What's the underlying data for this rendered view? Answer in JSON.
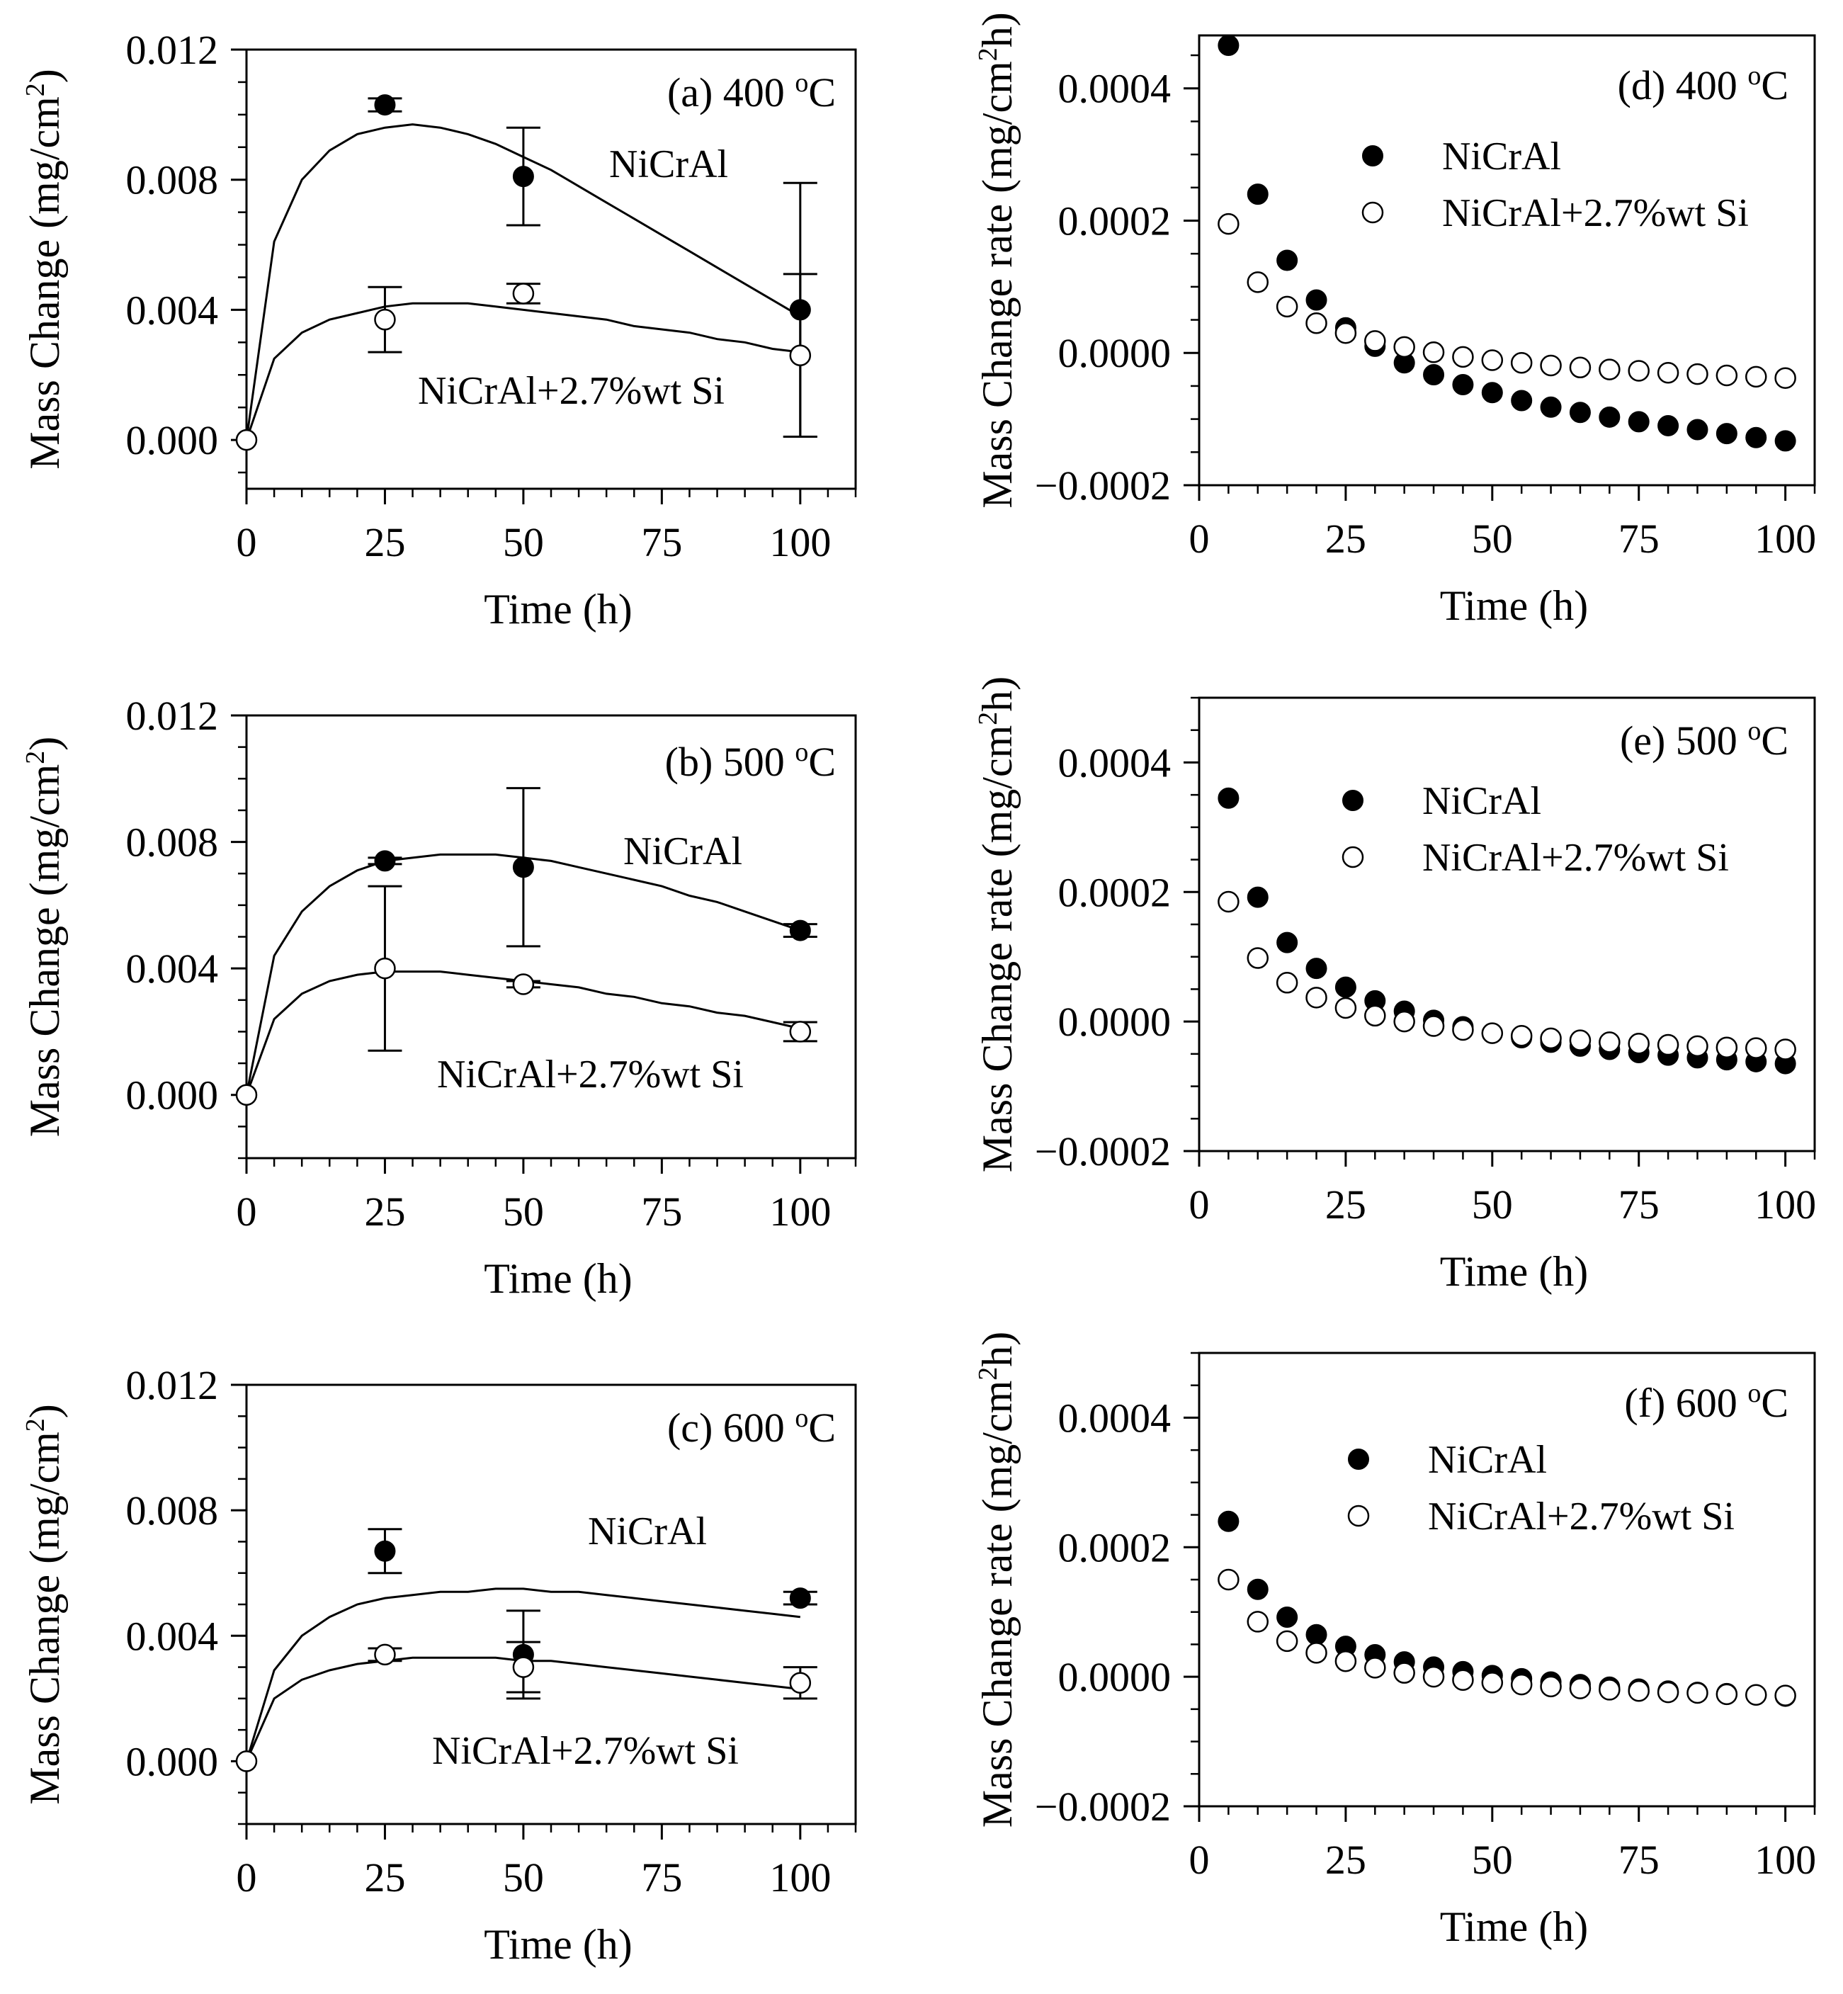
{
  "figure": {
    "colors": {
      "ink": "#000000",
      "background": "#ffffff",
      "open_fill": "#ffffff"
    },
    "series_names": [
      "NiCrAl",
      "NiCrAl+2.7%wt Si"
    ]
  },
  "chart_data": [
    {
      "id": "a",
      "type": "scatter",
      "title": "(a) 400 °C",
      "title_main": "(a) 400 ",
      "title_sup": "o",
      "title_unit": "C",
      "xlabel": "Time (h)",
      "ylabel": "Mass Change (mg/cm²)",
      "ylabel_main": "Mass Change (mg/cm",
      "ylabel_sup": "2",
      "ylabel_end": ")",
      "xlim": [
        0,
        110
      ],
      "ylim": [
        -0.0015,
        0.012
      ],
      "xticks": [
        0,
        25,
        50,
        75,
        100
      ],
      "xtick_labels": [
        "0",
        "25",
        "50",
        "75",
        "100"
      ],
      "yticks": [
        0,
        0.004,
        0.008,
        0.012
      ],
      "ytick_labels": [
        "0.000",
        "0.004",
        "0.008",
        "0.012"
      ],
      "series": [
        {
          "name": "NiCrAl",
          "marker": "filled",
          "x": [
            0,
            25,
            50,
            100
          ],
          "y": [
            0,
            0.0103,
            0.0081,
            0.004
          ],
          "err": [
            0,
            0.0002,
            0.0015,
            0.0039
          ],
          "fit": {
            "x": [
              0,
              5,
              10,
              15,
              20,
              25,
              30,
              35,
              40,
              45,
              50,
              55,
              60,
              65,
              70,
              75,
              80,
              85,
              90,
              95,
              100
            ],
            "y": [
              0,
              0.0061,
              0.008,
              0.0089,
              0.0094,
              0.0096,
              0.0097,
              0.0096,
              0.0094,
              0.0091,
              0.0087,
              0.0083,
              0.0078,
              0.0073,
              0.0068,
              0.0063,
              0.0058,
              0.0053,
              0.0048,
              0.0043,
              0.0038
            ]
          }
        },
        {
          "name": "NiCrAl+2.7%wt Si",
          "marker": "open",
          "x": [
            0,
            25,
            50,
            100
          ],
          "y": [
            0,
            0.0037,
            0.0045,
            0.0026
          ],
          "err": [
            0,
            0.001,
            0.0003,
            0.0025
          ],
          "fit": {
            "x": [
              0,
              5,
              10,
              15,
              20,
              25,
              30,
              35,
              40,
              45,
              50,
              55,
              60,
              65,
              70,
              75,
              80,
              85,
              90,
              95,
              100
            ],
            "y": [
              0,
              0.0025,
              0.0033,
              0.0037,
              0.0039,
              0.0041,
              0.0042,
              0.0042,
              0.0042,
              0.0041,
              0.004,
              0.0039,
              0.0038,
              0.0037,
              0.0035,
              0.0034,
              0.0033,
              0.0031,
              0.003,
              0.0028,
              0.0027
            ]
          }
        }
      ],
      "annotations": [
        "NiCrAl",
        "NiCrAl+2.7%wt Si"
      ]
    },
    {
      "id": "b",
      "type": "scatter",
      "title": "(b) 500 °C",
      "title_main": "(b) 500 ",
      "title_sup": "o",
      "title_unit": "C",
      "xlabel": "Time (h)",
      "ylabel": "Mass Change (mg/cm²)",
      "ylabel_main": "Mass Change (mg/cm",
      "ylabel_sup": "2",
      "ylabel_end": ")",
      "xlim": [
        0,
        110
      ],
      "ylim": [
        -0.002,
        0.012
      ],
      "xticks": [
        0,
        25,
        50,
        75,
        100
      ],
      "xtick_labels": [
        "0",
        "25",
        "50",
        "75",
        "100"
      ],
      "yticks": [
        0,
        0.004,
        0.008,
        0.012
      ],
      "ytick_labels": [
        "0.000",
        "0.004",
        "0.008",
        "0.012"
      ],
      "series": [
        {
          "name": "NiCrAl",
          "marker": "filled",
          "x": [
            0,
            25,
            50,
            100
          ],
          "y": [
            0,
            0.0074,
            0.0072,
            0.0052
          ],
          "err": [
            0,
            0.0001,
            0.0025,
            0.0002
          ],
          "fit": {
            "x": [
              0,
              5,
              10,
              15,
              20,
              25,
              30,
              35,
              40,
              45,
              50,
              55,
              60,
              65,
              70,
              75,
              80,
              85,
              90,
              95,
              100
            ],
            "y": [
              0,
              0.0044,
              0.0058,
              0.0066,
              0.0071,
              0.0074,
              0.0075,
              0.0076,
              0.0076,
              0.0076,
              0.0075,
              0.0074,
              0.0072,
              0.007,
              0.0068,
              0.0066,
              0.0063,
              0.0061,
              0.0058,
              0.0055,
              0.0052
            ]
          }
        },
        {
          "name": "NiCrAl+2.7%wt Si",
          "marker": "open",
          "x": [
            0,
            25,
            50,
            100
          ],
          "y": [
            0,
            0.004,
            0.0035,
            0.002
          ],
          "err": [
            0,
            0.0026,
            0.0001,
            0.0003
          ],
          "fit": {
            "x": [
              0,
              5,
              10,
              15,
              20,
              25,
              30,
              35,
              40,
              45,
              50,
              55,
              60,
              65,
              70,
              75,
              80,
              85,
              90,
              95,
              100
            ],
            "y": [
              0,
              0.0024,
              0.0032,
              0.0036,
              0.0038,
              0.0039,
              0.0039,
              0.0039,
              0.0038,
              0.0037,
              0.0036,
              0.0035,
              0.0034,
              0.0032,
              0.0031,
              0.0029,
              0.0028,
              0.0026,
              0.0025,
              0.0023,
              0.0021
            ]
          }
        }
      ],
      "annotations": [
        "NiCrAl",
        "NiCrAl+2.7%wt Si"
      ]
    },
    {
      "id": "c",
      "type": "scatter",
      "title": "(c) 600 °C",
      "title_main": "(c) 600 ",
      "title_sup": "o",
      "title_unit": "C",
      "xlabel": "Time (h)",
      "ylabel": "Mass Change (mg/cm²)",
      "ylabel_main": "Mass Change (mg/cm",
      "ylabel_sup": "2",
      "ylabel_end": ")",
      "xlim": [
        0,
        110
      ],
      "ylim": [
        -0.002,
        0.012
      ],
      "xticks": [
        0,
        25,
        50,
        75,
        100
      ],
      "xtick_labels": [
        "0",
        "25",
        "50",
        "75",
        "100"
      ],
      "yticks": [
        0,
        0.004,
        0.008,
        0.012
      ],
      "ytick_labels": [
        "0.000",
        "0.004",
        "0.008",
        "0.012"
      ],
      "series": [
        {
          "name": "NiCrAl",
          "marker": "filled",
          "x": [
            0,
            25,
            50,
            100
          ],
          "y": [
            0,
            0.0067,
            0.0034,
            0.0052
          ],
          "err": [
            0,
            0.0007,
            0.0014,
            0.0002
          ],
          "fit": {
            "x": [
              0,
              5,
              10,
              15,
              20,
              25,
              30,
              35,
              40,
              45,
              50,
              55,
              60,
              65,
              70,
              75,
              80,
              85,
              90,
              95,
              100
            ],
            "y": [
              0,
              0.0029,
              0.004,
              0.0046,
              0.005,
              0.0052,
              0.0053,
              0.0054,
              0.0054,
              0.0055,
              0.0055,
              0.0054,
              0.0054,
              0.0053,
              0.0052,
              0.0051,
              0.005,
              0.0049,
              0.0048,
              0.0047,
              0.0046
            ]
          }
        },
        {
          "name": "NiCrAl+2.7%wt Si",
          "marker": "open",
          "x": [
            0,
            25,
            50,
            100
          ],
          "y": [
            0,
            0.0034,
            0.003,
            0.0025
          ],
          "err": [
            0,
            0.0002,
            0.0008,
            0.0005
          ],
          "fit": {
            "x": [
              0,
              5,
              10,
              15,
              20,
              25,
              30,
              35,
              40,
              45,
              50,
              55,
              60,
              65,
              70,
              75,
              80,
              85,
              90,
              95,
              100
            ],
            "y": [
              0,
              0.002,
              0.0026,
              0.0029,
              0.0031,
              0.0032,
              0.0033,
              0.0033,
              0.0033,
              0.0033,
              0.0032,
              0.0032,
              0.0031,
              0.003,
              0.0029,
              0.0028,
              0.0027,
              0.0026,
              0.0025,
              0.0024,
              0.0023
            ]
          }
        }
      ],
      "annotations": [
        "NiCrAl",
        "NiCrAl+2.7%wt Si"
      ]
    },
    {
      "id": "d",
      "type": "scatter",
      "title": "(d) 400 °C",
      "title_main": "(d) 400 ",
      "title_sup": "o",
      "title_unit": "C",
      "xlabel": "Time (h)",
      "ylabel": "Mass Change rate (mg/cm²h)",
      "ylabel_main": "Mass Change rate (mg/cm",
      "ylabel_sup": "2",
      "ylabel_end": "h)",
      "xlim": [
        0,
        105
      ],
      "ylim": [
        -0.0002,
        0.00048
      ],
      "xticks": [
        0,
        25,
        50,
        75,
        100
      ],
      "xtick_labels": [
        "0",
        "25",
        "50",
        "75",
        "100"
      ],
      "yticks": [
        -0.0002,
        0,
        0.0002,
        0.0004
      ],
      "ytick_labels": [
        "−0.0002",
        "0.0000",
        "0.0002",
        "0.0004"
      ],
      "legend": [
        "NiCrAl",
        "NiCrAl+2.7%wt Si"
      ],
      "legend_position": "top-right",
      "series": [
        {
          "name": "NiCrAl",
          "marker": "filled",
          "x": [
            5,
            10,
            15,
            20,
            25,
            30,
            35,
            40,
            45,
            50,
            55,
            60,
            65,
            70,
            75,
            80,
            85,
            90,
            95,
            100
          ],
          "y": [
            0.000465,
            0.00024,
            0.00014,
            8e-05,
            3.8e-05,
            1e-05,
            -1.5e-05,
            -3.3e-05,
            -4.8e-05,
            -6e-05,
            -7.2e-05,
            -8.2e-05,
            -9e-05,
            -9.7e-05,
            -0.000104,
            -0.00011,
            -0.000116,
            -0.000122,
            -0.000128,
            -0.000133
          ]
        },
        {
          "name": "NiCrAl+2.7%wt Si",
          "marker": "open",
          "x": [
            5,
            10,
            15,
            20,
            25,
            30,
            35,
            40,
            45,
            50,
            55,
            60,
            65,
            70,
            75,
            80,
            85,
            90,
            95,
            100
          ],
          "y": [
            0.000195,
            0.000107,
            7e-05,
            4.5e-05,
            3e-05,
            1.8e-05,
            9e-06,
            1e-06,
            -6e-06,
            -1.1e-05,
            -1.5e-05,
            -1.9e-05,
            -2.2e-05,
            -2.5e-05,
            -2.7e-05,
            -3e-05,
            -3.2e-05,
            -3.4e-05,
            -3.6e-05,
            -3.8e-05
          ]
        }
      ]
    },
    {
      "id": "e",
      "type": "scatter",
      "title": "(e) 500 °C",
      "title_main": "(e) 500 ",
      "title_sup": "o",
      "title_unit": "C",
      "xlabel": "Time (h)",
      "ylabel": "Mass Change rate (mg/cm²h)",
      "ylabel_main": "Mass Change rate (mg/cm",
      "ylabel_sup": "2",
      "ylabel_end": "h)",
      "xlim": [
        0,
        105
      ],
      "ylim": [
        -0.0002,
        0.0005
      ],
      "xticks": [
        0,
        25,
        50,
        75,
        100
      ],
      "xtick_labels": [
        "0",
        "25",
        "50",
        "75",
        "100"
      ],
      "yticks": [
        -0.0002,
        0,
        0.0002,
        0.0004
      ],
      "ytick_labels": [
        "−0.0002",
        "0.0000",
        "0.0002",
        "0.0004"
      ],
      "legend": [
        "NiCrAl",
        "NiCrAl+2.7%wt Si"
      ],
      "legend_position": "top-right",
      "series": [
        {
          "name": "NiCrAl",
          "marker": "filled",
          "x": [
            5,
            10,
            15,
            20,
            25,
            30,
            35,
            40,
            45,
            50,
            55,
            60,
            65,
            70,
            75,
            80,
            85,
            90,
            95,
            100
          ],
          "y": [
            0.000345,
            0.000192,
            0.000122,
            8.2e-05,
            5.3e-05,
            3.2e-05,
            1.6e-05,
            2e-06,
            -8e-06,
            -1.8e-05,
            -2.5e-05,
            -3.2e-05,
            -3.8e-05,
            -4.3e-05,
            -4.8e-05,
            -5.2e-05,
            -5.6e-05,
            -5.9e-05,
            -6.2e-05,
            -6.5e-05
          ]
        },
        {
          "name": "NiCrAl+2.7%wt Si",
          "marker": "open",
          "x": [
            5,
            10,
            15,
            20,
            25,
            30,
            35,
            40,
            45,
            50,
            55,
            60,
            65,
            70,
            75,
            80,
            85,
            90,
            95,
            100
          ],
          "y": [
            0.000185,
            9.8e-05,
            6e-05,
            3.7e-05,
            2.1e-05,
            9e-06,
            0.0,
            -7e-06,
            -1.3e-05,
            -1.8e-05,
            -2.2e-05,
            -2.6e-05,
            -2.9e-05,
            -3.2e-05,
            -3.4e-05,
            -3.6e-05,
            -3.8e-05,
            -4e-05,
            -4.1e-05,
            -4.3e-05
          ]
        }
      ]
    },
    {
      "id": "f",
      "type": "scatter",
      "title": "(f) 600 °C",
      "title_main": "(f) 600 ",
      "title_sup": "o",
      "title_unit": "C",
      "xlabel": "Time (h)",
      "ylabel": "Mass Change rate (mg/cm²h)",
      "ylabel_main": "Mass Change rate (mg/cm",
      "ylabel_sup": "2",
      "ylabel_end": "h)",
      "xlim": [
        0,
        105
      ],
      "ylim": [
        -0.0002,
        0.0005
      ],
      "xticks": [
        0,
        25,
        50,
        75,
        100
      ],
      "xtick_labels": [
        "0",
        "25",
        "50",
        "75",
        "100"
      ],
      "yticks": [
        -0.0002,
        0,
        0.0002,
        0.0004
      ],
      "ytick_labels": [
        "−0.0002",
        "0.0000",
        "0.0002",
        "0.0004"
      ],
      "legend": [
        "NiCrAl",
        "NiCrAl+2.7%wt Si"
      ],
      "legend_position": "top-right",
      "series": [
        {
          "name": "NiCrAl",
          "marker": "filled",
          "x": [
            5,
            10,
            15,
            20,
            25,
            30,
            35,
            40,
            45,
            50,
            55,
            60,
            65,
            70,
            75,
            80,
            85,
            90,
            95,
            100
          ],
          "y": [
            0.00024,
            0.000135,
            9.2e-05,
            6.5e-05,
            4.7e-05,
            3.4e-05,
            2.3e-05,
            1.5e-05,
            8e-06,
            2e-06,
            -3e-06,
            -8e-06,
            -1.2e-05,
            -1.6e-05,
            -1.9e-05,
            -2.2e-05,
            -2.4e-05,
            -2.6e-05,
            -2.8e-05,
            -3e-05
          ]
        },
        {
          "name": "NiCrAl+2.7%wt Si",
          "marker": "open",
          "x": [
            5,
            10,
            15,
            20,
            25,
            30,
            35,
            40,
            45,
            50,
            55,
            60,
            65,
            70,
            75,
            80,
            85,
            90,
            95,
            100
          ],
          "y": [
            0.00015,
            8.5e-05,
            5.5e-05,
            3.7e-05,
            2.4e-05,
            1.4e-05,
            6e-06,
            0.0,
            -5e-06,
            -9e-06,
            -1.2e-05,
            -1.5e-05,
            -1.8e-05,
            -2e-05,
            -2.2e-05,
            -2.4e-05,
            -2.5e-05,
            -2.7e-05,
            -2.8e-05,
            -2.9e-05
          ]
        }
      ]
    }
  ]
}
